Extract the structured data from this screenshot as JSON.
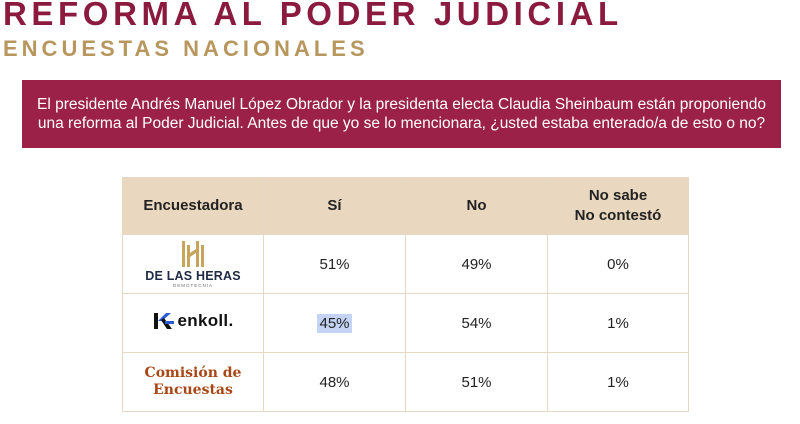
{
  "header": {
    "title": "REFORMA AL PODER JUDICIAL",
    "subtitle": "ENCUESTAS NACIONALES"
  },
  "question": {
    "text": "El presidente Andrés Manuel López Obrador y la presidenta electa Claudia Sheinbaum están proponiendo una reforma al Poder Judicial. Antes de que yo se lo mencionara, ¿usted estaba enterado/a de esto o no?"
  },
  "table": {
    "columns": [
      "Encuestadora",
      "Sí",
      "No"
    ],
    "nsnc_label": [
      "No sabe",
      "No contestó"
    ],
    "rows": [
      {
        "pollster_logo": "De Las Heras Demotecnia logo",
        "pollster": [
          "DE LAS HERAS",
          "DEMOTECNIA"
        ],
        "si": "51%",
        "no": "49%",
        "nsnc": "0%"
      },
      {
        "pollster_logo": "Enkoll logo",
        "pollster": [
          "enkoll."
        ],
        "si": "45%",
        "no": "54%",
        "nsnc": "1%"
      },
      {
        "pollster_logo": "Comisión de Encuestas logo",
        "pollster": [
          "Comisión de",
          "Encuestas"
        ],
        "si": "48%",
        "no": "51%",
        "nsnc": "1%"
      }
    ]
  },
  "colors": {
    "title": "#8b1a3f",
    "subtitle": "#b8975f",
    "question_bg": "#9b2148",
    "table_header_bg": "#e9d8bf",
    "table_border": "#e6d8c4",
    "selection_highlight": "#c5d4f5",
    "logo_gold": "#c8a55c",
    "logo_navy": "#1f2a44",
    "enkoll_blue": "#2a5bd7",
    "comision_text": "#a84716"
  }
}
